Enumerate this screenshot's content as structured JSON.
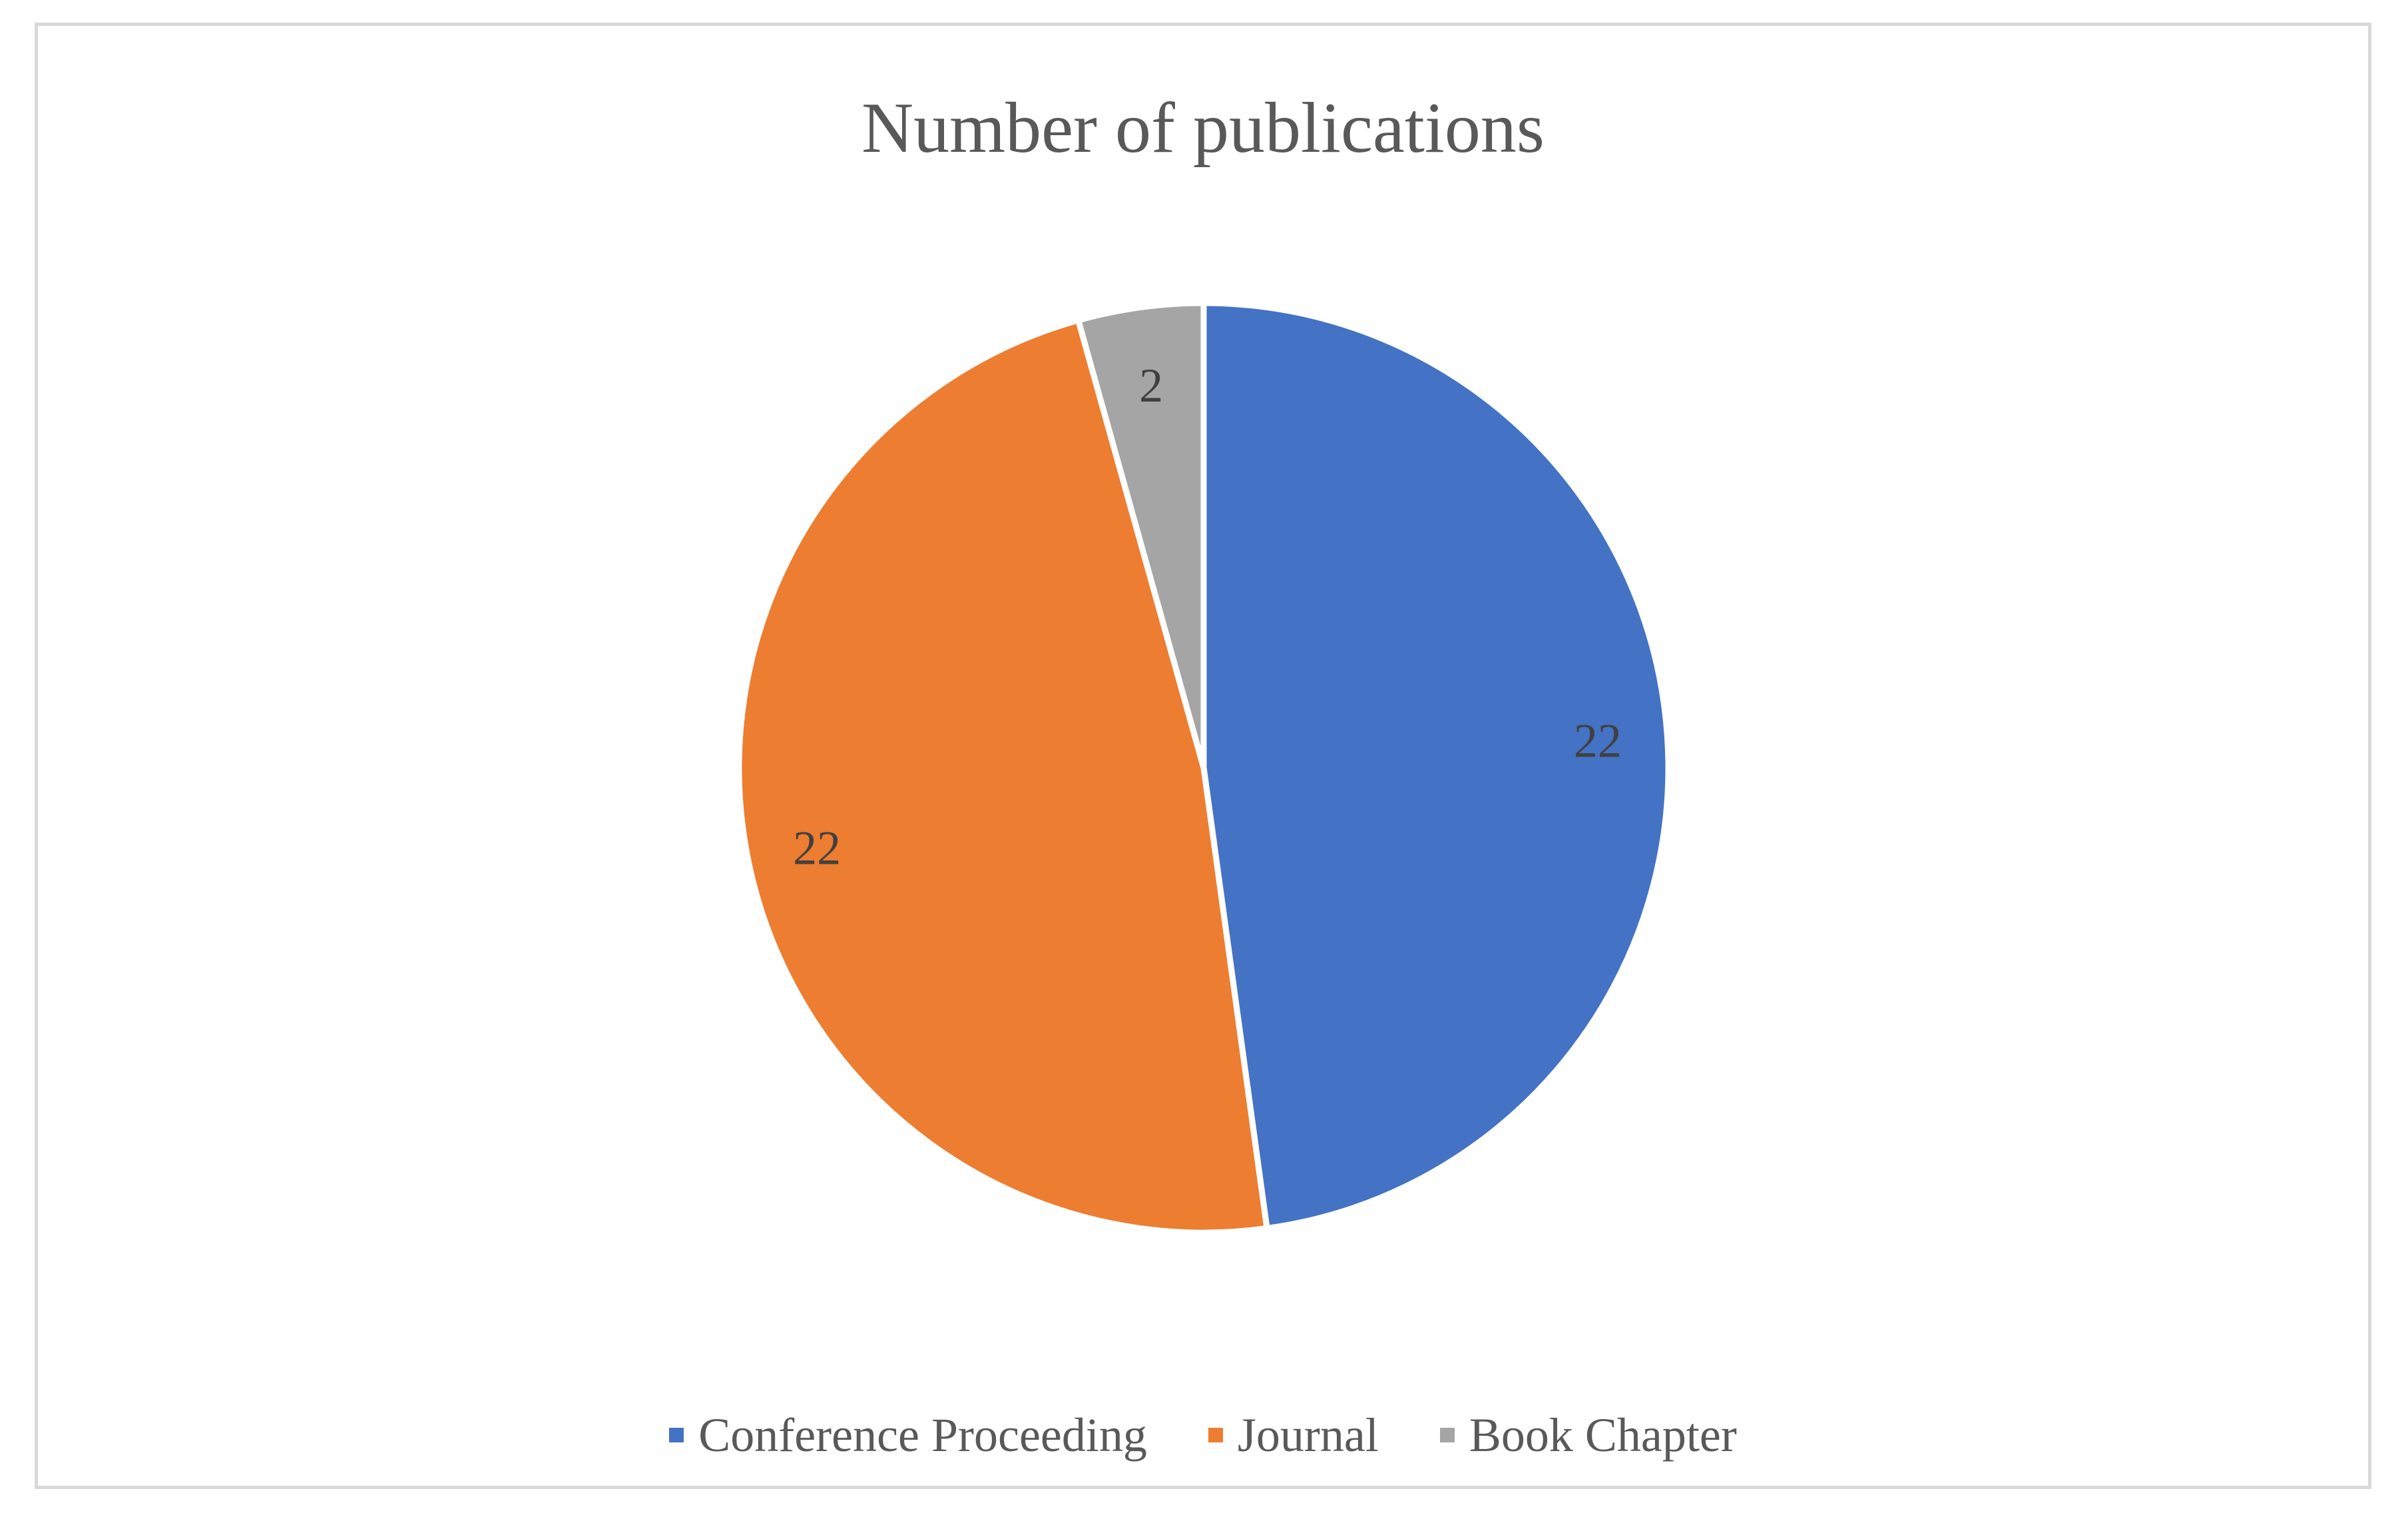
{
  "chart_data": {
    "type": "pie",
    "title": "Number of publications",
    "categories": [
      "Conference Proceeding",
      "Journal",
      "Book Chapter"
    ],
    "values": [
      22,
      22,
      2
    ],
    "colors": [
      "#4472c4",
      "#ed7d31",
      "#a5a5a5"
    ],
    "data_labels": [
      "22",
      "22",
      "2"
    ],
    "legend_position": "bottom"
  }
}
